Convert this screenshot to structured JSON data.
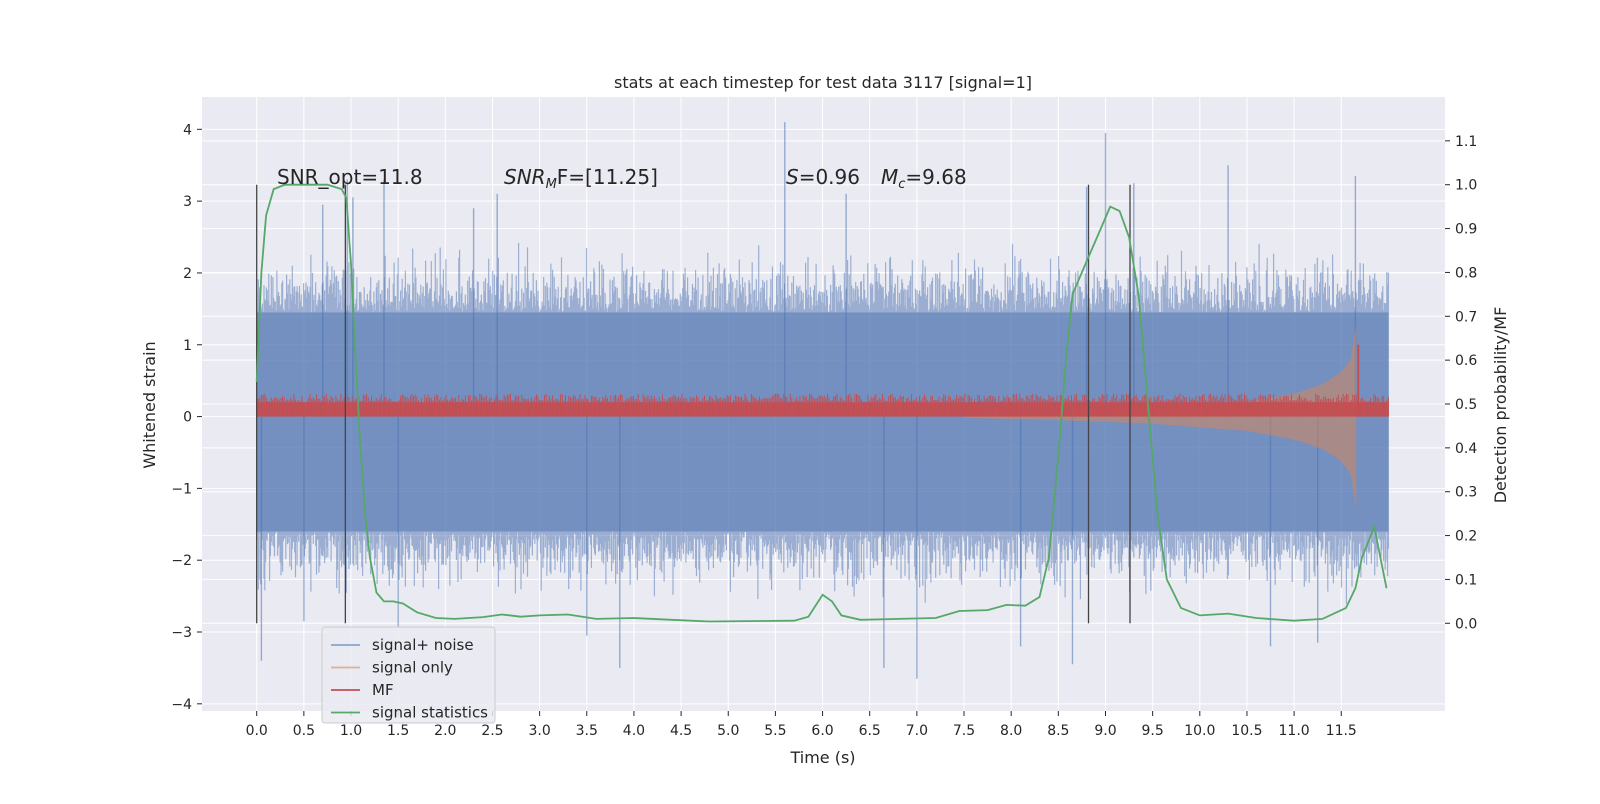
{
  "chart_data": {
    "type": "line",
    "title": "stats at each timestep for test data 3117 [signal=1]",
    "xlabel": "Time (s)",
    "ylabel_left": "Whitened strain",
    "ylabel_right": "Detection probability/MF",
    "xlim": [
      -0.58,
      12.6
    ],
    "ylim_left": [
      -4.1,
      4.45
    ],
    "ylim_right": [
      -0.2,
      1.2
    ],
    "x_ticks": [
      0.0,
      0.5,
      1.0,
      1.5,
      2.0,
      2.5,
      3.0,
      3.5,
      4.0,
      4.5,
      5.0,
      5.5,
      6.0,
      6.5,
      7.0,
      7.5,
      8.0,
      8.5,
      9.0,
      9.5,
      10.0,
      10.5,
      11.0,
      11.5
    ],
    "x_tick_labels": [
      "0.0",
      "0.5",
      "1.0",
      "1.5",
      "2.0",
      "2.5",
      "3.0",
      "3.5",
      "4.0",
      "4.5",
      "5.0",
      "5.5",
      "6.0",
      "6.5",
      "7.0",
      "7.5",
      "8.0",
      "8.5",
      "9.0",
      "9.5",
      "10.0",
      "10.5",
      "11.0",
      "11.5"
    ],
    "y_left_ticks": [
      -4,
      -3,
      -2,
      -1,
      0,
      1,
      2,
      3,
      4
    ],
    "y_left_tick_labels": [
      "−4",
      "−3",
      "−2",
      "−1",
      "0",
      "1",
      "2",
      "3",
      "4"
    ],
    "y_right_ticks": [
      0.0,
      0.1,
      0.2,
      0.3,
      0.4,
      0.5,
      0.6,
      0.7,
      0.8,
      0.9,
      1.0,
      1.1
    ],
    "y_right_tick_labels": [
      "0.0",
      "0.1",
      "0.2",
      "0.3",
      "0.4",
      "0.5",
      "0.6",
      "0.7",
      "0.8",
      "0.9",
      "1.0",
      "1.1"
    ],
    "annotations": {
      "snr_opt": "SNR_opt=11.8",
      "snr_mf_base": "SNR",
      "snr_mf_sub": "M",
      "snr_mf_rest": "F=[11.25]",
      "s_sym": "S",
      "s_val": "=0.96",
      "mc_sym": "M",
      "mc_sub": "c",
      "mc_val": "=9.68"
    },
    "vertical_lines_x": [
      0.0,
      0.94,
      8.82,
      9.26
    ],
    "vertical_lines_range_right": [
      0.0,
      1.0
    ],
    "series": [
      {
        "name": "signal+ noise",
        "color": "#4c72b0",
        "style": "dense noise band, alpha 0.5",
        "x_range": [
          0.0,
          12.0
        ],
        "y_range_typical": [
          -1.6,
          1.45
        ],
        "y_extremes": [
          -3.6,
          4.1
        ],
        "spikes_up": [
          [
            0.7,
            2.95
          ],
          [
            0.96,
            3.3
          ],
          [
            1.02,
            3.05
          ],
          [
            1.35,
            3.3
          ],
          [
            2.3,
            2.9
          ],
          [
            2.55,
            3.1
          ],
          [
            5.6,
            4.1
          ],
          [
            6.25,
            3.1
          ],
          [
            8.8,
            3.2
          ],
          [
            9.0,
            3.95
          ],
          [
            9.3,
            3.25
          ],
          [
            10.3,
            3.5
          ],
          [
            11.65,
            3.35
          ]
        ],
        "spikes_down": [
          [
            0.05,
            -3.4
          ],
          [
            0.5,
            -2.85
          ],
          [
            1.5,
            -2.95
          ],
          [
            3.5,
            -3.05
          ],
          [
            3.85,
            -3.5
          ],
          [
            6.65,
            -3.5
          ],
          [
            7.0,
            -3.65
          ],
          [
            8.1,
            -3.2
          ],
          [
            8.65,
            -3.45
          ],
          [
            10.75,
            -3.2
          ],
          [
            11.25,
            -3.15
          ]
        ]
      },
      {
        "name": "signal only",
        "color": "#dd8452",
        "style": "chirp envelope, alpha 0.5",
        "x_range": [
          7.5,
          11.7
        ],
        "envelope": [
          [
            7.5,
            0.02
          ],
          [
            8.5,
            0.05
          ],
          [
            9.5,
            0.1
          ],
          [
            10.5,
            0.2
          ],
          [
            11.0,
            0.32
          ],
          [
            11.3,
            0.45
          ],
          [
            11.5,
            0.62
          ],
          [
            11.6,
            0.8
          ],
          [
            11.66,
            1.3
          ]
        ]
      },
      {
        "name": "MF",
        "color": "#c44e52",
        "style": "thin band",
        "x_range": [
          0.0,
          12.0
        ],
        "y_range": [
          0.0,
          0.2
        ],
        "peak": [
          11.68,
          1.0
        ]
      },
      {
        "name": "signal statistics",
        "color": "#55a868",
        "axis": "right",
        "points": [
          [
            0.0,
            0.55
          ],
          [
            0.05,
            0.8
          ],
          [
            0.1,
            0.93
          ],
          [
            0.18,
            0.99
          ],
          [
            0.3,
            1.0
          ],
          [
            0.5,
            1.0
          ],
          [
            0.75,
            1.0
          ],
          [
            0.9,
            0.99
          ],
          [
            0.95,
            0.97
          ],
          [
            1.0,
            0.82
          ],
          [
            1.05,
            0.6
          ],
          [
            1.1,
            0.4
          ],
          [
            1.15,
            0.25
          ],
          [
            1.2,
            0.15
          ],
          [
            1.27,
            0.07
          ],
          [
            1.35,
            0.05
          ],
          [
            1.45,
            0.05
          ],
          [
            1.55,
            0.045
          ],
          [
            1.7,
            0.025
          ],
          [
            1.9,
            0.012
          ],
          [
            2.1,
            0.01
          ],
          [
            2.4,
            0.014
          ],
          [
            2.6,
            0.02
          ],
          [
            2.8,
            0.015
          ],
          [
            3.0,
            0.018
          ],
          [
            3.3,
            0.02
          ],
          [
            3.6,
            0.01
          ],
          [
            4.0,
            0.012
          ],
          [
            4.4,
            0.008
          ],
          [
            4.8,
            0.004
          ],
          [
            5.2,
            0.005
          ],
          [
            5.7,
            0.006
          ],
          [
            5.85,
            0.015
          ],
          [
            6.0,
            0.065
          ],
          [
            6.1,
            0.05
          ],
          [
            6.2,
            0.018
          ],
          [
            6.4,
            0.008
          ],
          [
            6.8,
            0.01
          ],
          [
            7.2,
            0.012
          ],
          [
            7.45,
            0.028
          ],
          [
            7.75,
            0.03
          ],
          [
            7.95,
            0.042
          ],
          [
            8.15,
            0.04
          ],
          [
            8.3,
            0.06
          ],
          [
            8.4,
            0.15
          ],
          [
            8.5,
            0.38
          ],
          [
            8.58,
            0.6
          ],
          [
            8.65,
            0.75
          ],
          [
            8.75,
            0.8
          ],
          [
            8.85,
            0.85
          ],
          [
            8.95,
            0.9
          ],
          [
            9.05,
            0.95
          ],
          [
            9.15,
            0.94
          ],
          [
            9.25,
            0.88
          ],
          [
            9.35,
            0.75
          ],
          [
            9.45,
            0.5
          ],
          [
            9.55,
            0.25
          ],
          [
            9.65,
            0.1
          ],
          [
            9.8,
            0.035
          ],
          [
            10.0,
            0.018
          ],
          [
            10.3,
            0.022
          ],
          [
            10.6,
            0.012
          ],
          [
            11.0,
            0.006
          ],
          [
            11.3,
            0.01
          ],
          [
            11.55,
            0.035
          ],
          [
            11.65,
            0.08
          ],
          [
            11.72,
            0.15
          ],
          [
            11.85,
            0.22
          ],
          [
            11.98,
            0.08
          ]
        ]
      }
    ],
    "legend": {
      "placement": "lower-left",
      "entries": [
        {
          "label": "signal+ noise",
          "color": "#4c72b0"
        },
        {
          "label": "signal only",
          "color": "#dd8452"
        },
        {
          "label": "MF",
          "color": "#c44e52"
        },
        {
          "label": "signal statistics",
          "color": "#55a868"
        }
      ]
    },
    "grid": true
  }
}
